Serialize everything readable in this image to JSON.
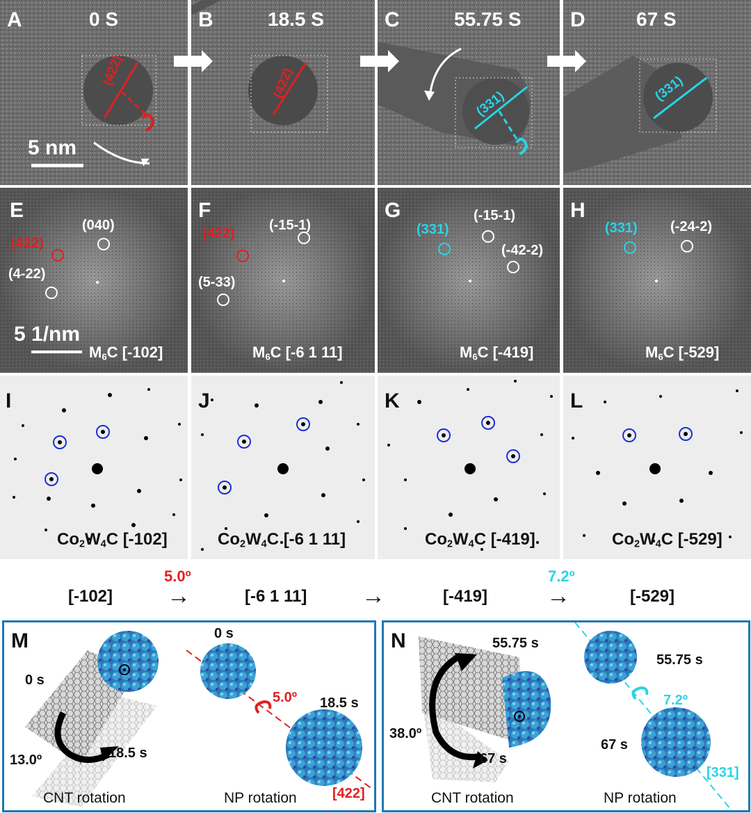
{
  "panels_top": [
    {
      "letter": "A",
      "time": "0 S"
    },
    {
      "letter": "B",
      "time": "18.5 S"
    },
    {
      "letter": "C",
      "time": "55.75 S"
    },
    {
      "letter": "D",
      "time": "67 S"
    }
  ],
  "scale_tem": "5 nm",
  "plane_labels_top": [
    "(422)",
    "(422)",
    "(331)",
    "(331)"
  ],
  "fft": [
    {
      "letter": "E",
      "spots": [
        "(040)",
        "(422)",
        "(4-22)"
      ],
      "phase": "M",
      "sub": "6",
      "rest": "C [-102]"
    },
    {
      "letter": "F",
      "spots": [
        "(-15-1)",
        "(422)",
        "(5-33)"
      ],
      "phase": "M",
      "sub": "6",
      "rest": "C [-6 1 11]"
    },
    {
      "letter": "G",
      "spots": [
        "(331)",
        "(-15-1)",
        "(-42-2)"
      ],
      "phase": "M",
      "sub": "6",
      "rest": "C [-419]"
    },
    {
      "letter": "H",
      "spots": [
        "(331)",
        "(-24-2)"
      ],
      "phase": "M",
      "sub": "6",
      "rest": "C [-529]"
    }
  ],
  "scale_fft": "5 1/nm",
  "sim": [
    {
      "letter": "I",
      "a": "Co",
      "s1": "2",
      "b": "W",
      "s2": "4",
      "rest": "C [-102]"
    },
    {
      "letter": "J",
      "a": "Co",
      "s1": "2",
      "b": "W",
      "s2": "4",
      "rest": "C [-6 1 11]"
    },
    {
      "letter": "K",
      "a": "Co",
      "s1": "2",
      "b": "W",
      "s2": "4",
      "rest": "C [-419]"
    },
    {
      "letter": "L",
      "a": "Co",
      "s1": "2",
      "b": "W",
      "s2": "4",
      "rest": "C [-529]"
    }
  ],
  "zones": [
    "[-102]",
    "[-6 1 11]",
    "[-419]",
    "[-529]"
  ],
  "angles": {
    "first": "5.0º",
    "second": "7.2º"
  },
  "arrow_glyph": "→",
  "box_m": {
    "letter": "M",
    "t0": "0 s",
    "t1": "18.5 s",
    "angle": "13.0º",
    "np_t0": "0 s",
    "np_angle": "5.0º",
    "np_t1": "18.5 s",
    "axis": "[422]",
    "cap_left": "CNT rotation",
    "cap_right": "NP rotation"
  },
  "box_n": {
    "letter": "N",
    "t0": "55.75 s",
    "angle": "38.0º",
    "t1": "67 s",
    "np_t0": "55.75 s",
    "np_angle": "7.2º",
    "np_t1": "67 s",
    "axis": "[331]",
    "cap_left": "CNT rotation",
    "cap_right": "NP rotation"
  },
  "colors": {
    "red": "#e02020",
    "cyan": "#2ad4e6",
    "box": "#1e78b4",
    "sphere": "#3a9bd0"
  }
}
